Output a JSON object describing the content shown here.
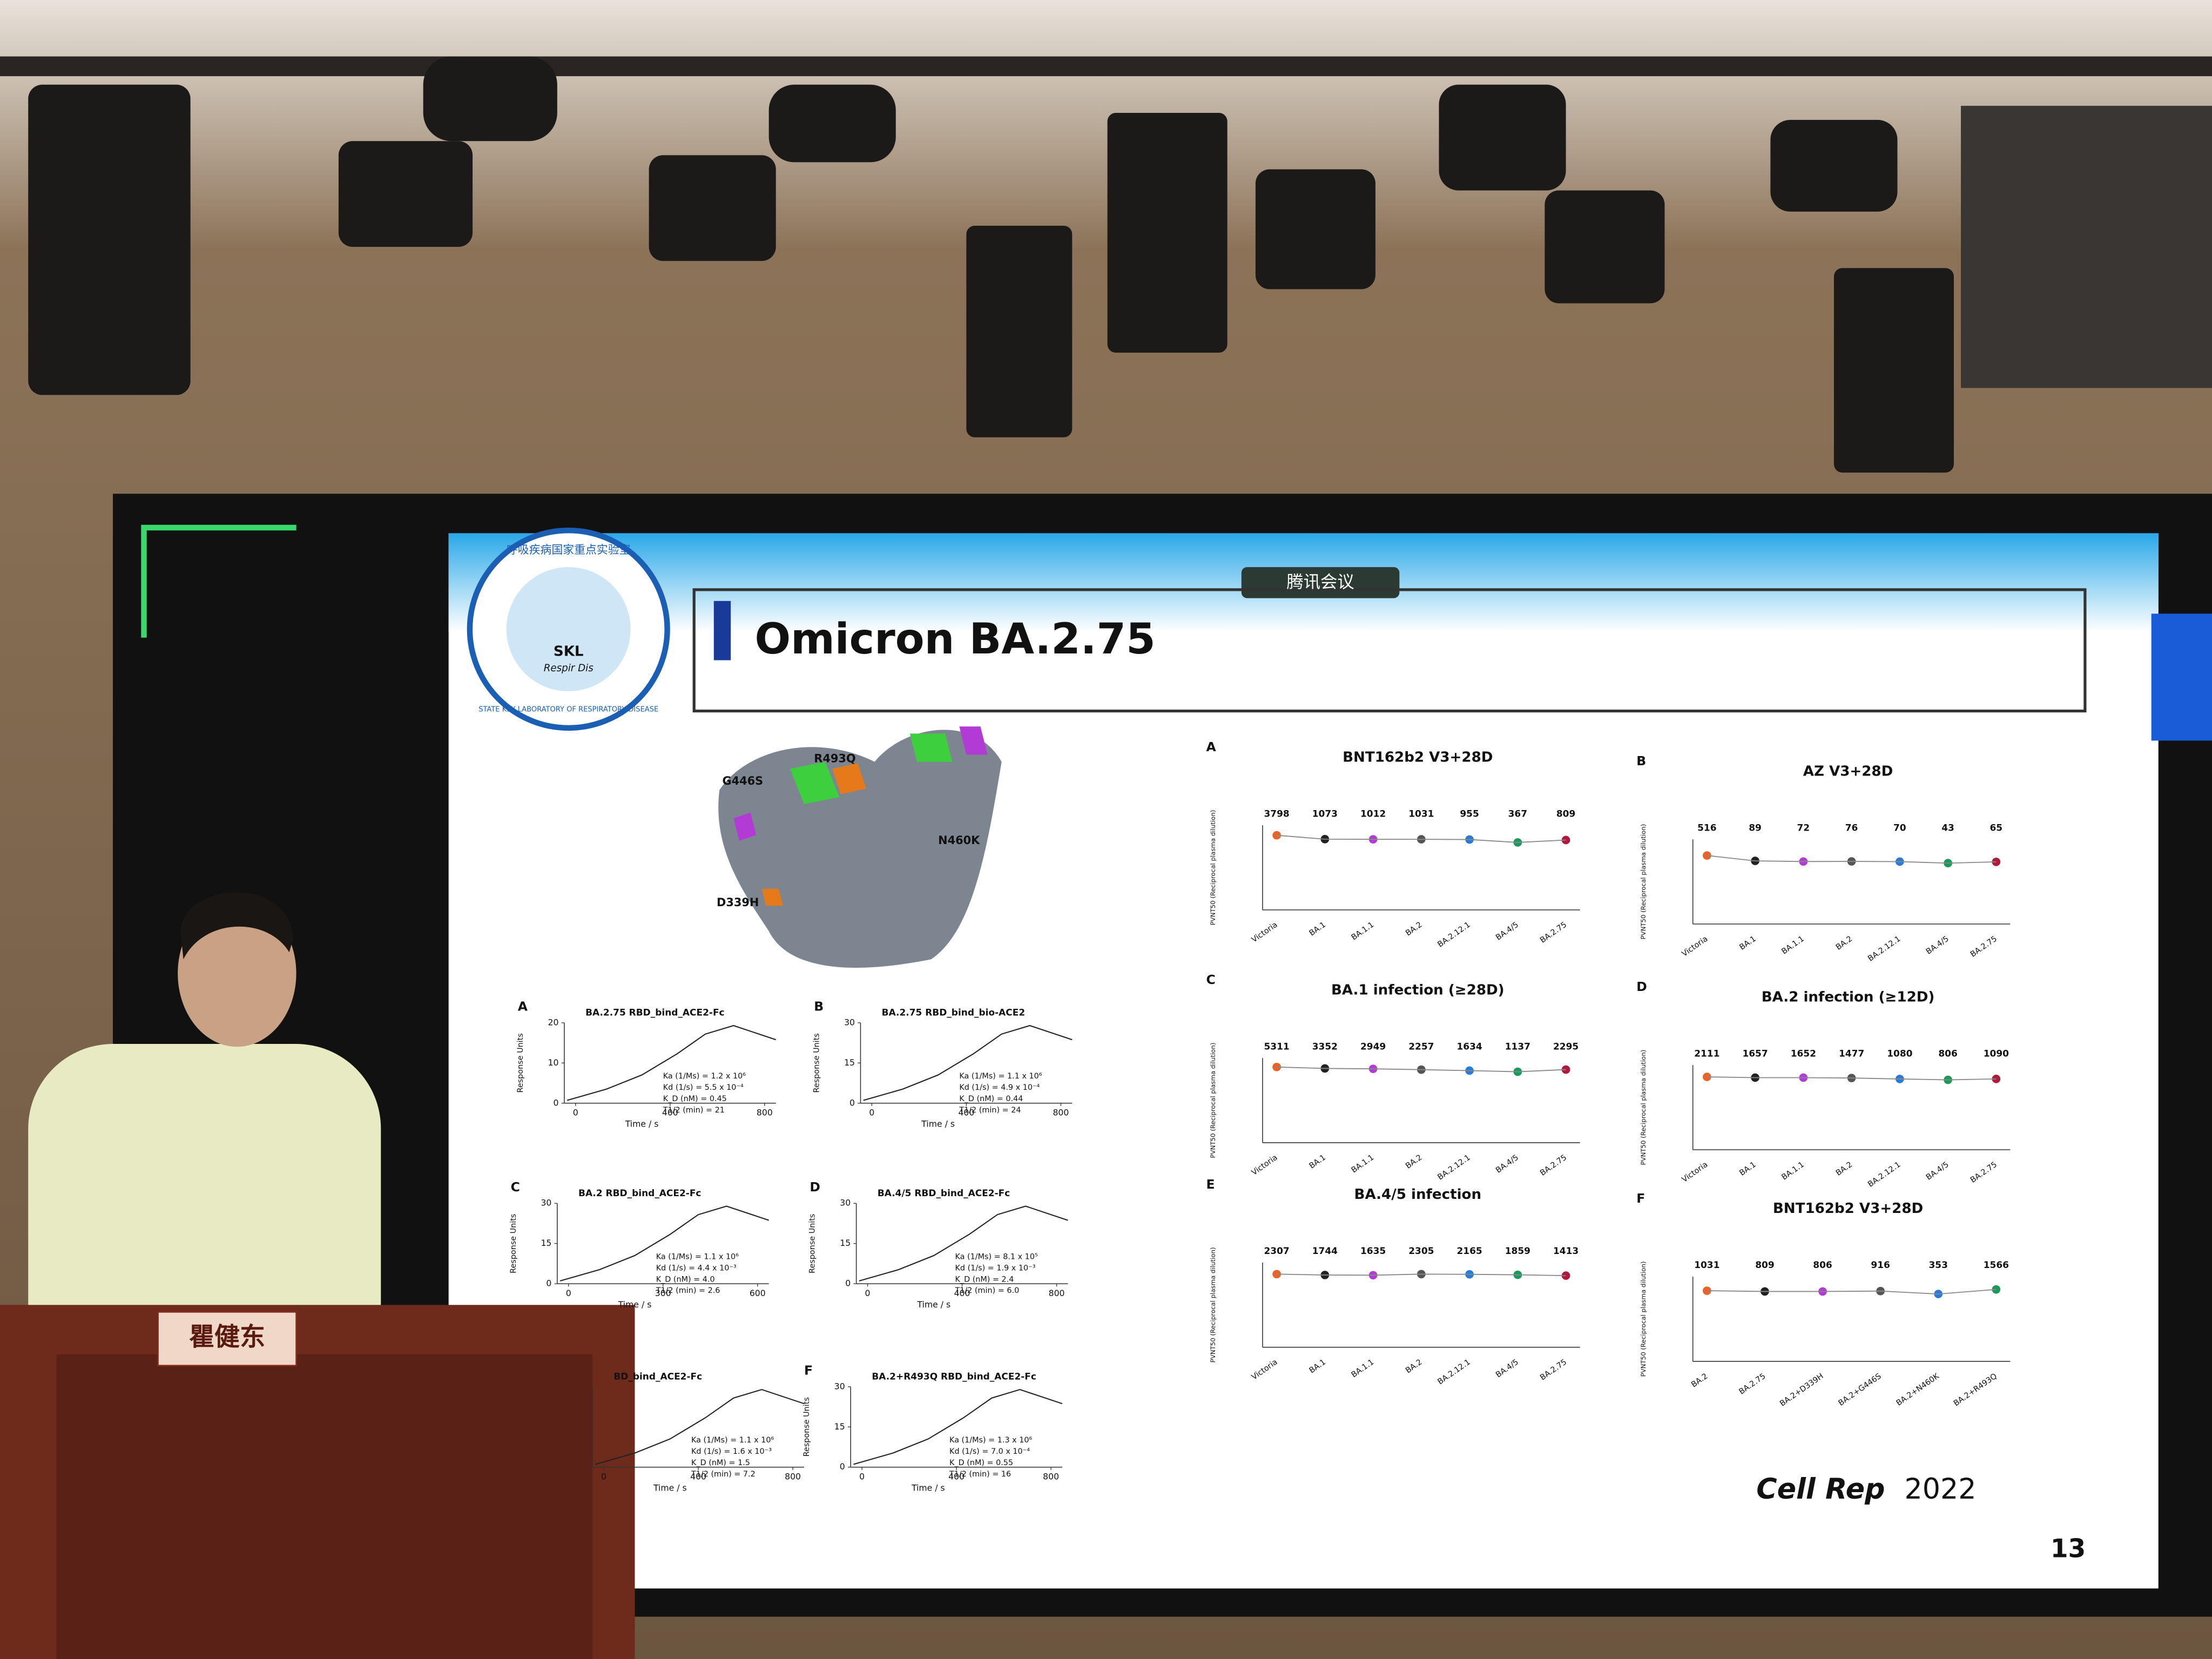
{
  "meeting_badge": "腾讯会议",
  "logo": {
    "name_cn": "呼吸疾病国家重点实验室",
    "abbr": "SKL",
    "sub": "Respir Dis",
    "name_en": "STATE KEY LABORATORY OF RESPIRATORY DISEASE"
  },
  "slide_title": "Omicron BA.2.75",
  "structure_labels": [
    "R493Q",
    "G446S",
    "N460K",
    "D339H"
  ],
  "spr_panels": [
    {
      "letter": "A",
      "title": "BA.2.75 RBD_bind_ACE2-Fc",
      "yticks": [
        0,
        10,
        20
      ],
      "xticks": [
        0,
        400,
        800
      ],
      "params": [
        "Ka (1/Ms) = 1.2 x 10⁶",
        "Kd (1/s) = 5.5 x 10⁻⁴",
        "K_D (nM) = 0.45",
        "T1/2 (min) = 21"
      ]
    },
    {
      "letter": "B",
      "title": "BA.2.75 RBD_bind_bio-ACE2",
      "yticks": [
        0,
        15,
        30
      ],
      "xticks": [
        0,
        400,
        800
      ],
      "params": [
        "Ka (1/Ms) = 1.1 x 10⁶",
        "Kd (1/s) = 4.9 x 10⁻⁴",
        "K_D (nM) = 0.44",
        "T1/2 (min) = 24"
      ]
    },
    {
      "letter": "C",
      "title": "BA.2 RBD_bind_ACE2-Fc",
      "yticks": [
        0,
        15,
        30
      ],
      "xticks": [
        0,
        300,
        600
      ],
      "params": [
        "Ka (1/Ms) = 1.1 x 10⁶",
        "Kd (1/s) = 4.4 x 10⁻³",
        "K_D (nM) = 4.0",
        "T1/2 (min) = 2.6"
      ]
    },
    {
      "letter": "D",
      "title": "BA.4/5 RBD_bind_ACE2-Fc",
      "yticks": [
        0,
        15,
        30
      ],
      "xticks": [
        0,
        400,
        800
      ],
      "params": [
        "Ka (1/Ms) = 8.1 x 10⁵",
        "Kd (1/s) = 1.9 x 10⁻³",
        "K_D (nM) = 2.4",
        "T1/2 (min) = 6.0"
      ]
    },
    {
      "title": "BD_bind_ACE2-Fc",
      "xticks": [
        0,
        400,
        800
      ],
      "params": [
        "Ka (1/Ms) = 1.1 x 10⁶",
        "Kd (1/s) = 1.6 x 10⁻³",
        "K_D (nM) = 1.5",
        "T1/2 (min) = 7.2"
      ]
    },
    {
      "letter": "F",
      "title": "BA.2+R493Q RBD_bind_ACE2-Fc",
      "yticks": [
        0,
        15,
        30
      ],
      "xticks": [
        0,
        400,
        800
      ],
      "params": [
        "Ka (1/Ms) = 1.3 x 10⁶",
        "Kd (1/s) = 7.0 x 10⁻⁴",
        "K_D (nM) = 0.55",
        "T1/2 (min) = 16"
      ]
    }
  ],
  "spr_axis": {
    "y_label": "Response Units",
    "x_label": "Time / s"
  },
  "neut_y_label": "PVNT50 (Reciprocal plasma dilution)",
  "neut_panels": [
    {
      "letter": "A",
      "title": "BNT162b2 V3+28D",
      "values": [
        3798,
        1073,
        1012,
        1031,
        955,
        367,
        809
      ],
      "categories": [
        "Victoria",
        "BA.1",
        "BA.1.1",
        "BA.2",
        "BA.2.12.1",
        "BA.4/5",
        "BA.2.75"
      ]
    },
    {
      "letter": "B",
      "title": "AZ V3+28D",
      "values": [
        516,
        89,
        72,
        76,
        70,
        43,
        65
      ],
      "categories": [
        "Victoria",
        "BA.1",
        "BA.1.1",
        "BA.2",
        "BA.2.12.1",
        "BA.4/5",
        "BA.2.75"
      ]
    },
    {
      "letter": "C",
      "title": "BA.1 infection (≥28D)",
      "values": [
        5311,
        3352,
        2949,
        2257,
        1634,
        1137,
        2295
      ],
      "categories": [
        "Victoria",
        "BA.1",
        "BA.1.1",
        "BA.2",
        "BA.2.12.1",
        "BA.4/5",
        "BA.2.75"
      ]
    },
    {
      "letter": "D",
      "title": "BA.2 infection (≥12D)",
      "values": [
        2111,
        1657,
        1652,
        1477,
        1080,
        806,
        1090
      ],
      "categories": [
        "Victoria",
        "BA.1",
        "BA.1.1",
        "BA.2",
        "BA.2.12.1",
        "BA.4/5",
        "BA.2.75"
      ]
    },
    {
      "letter": "E",
      "title": "BA.4/5 infection",
      "values": [
        2307,
        1744,
        1635,
        2305,
        2165,
        1859,
        1413
      ],
      "categories": [
        "Victoria",
        "BA.1",
        "BA.1.1",
        "BA.2",
        "BA.2.12.1",
        "BA.4/5",
        "BA.2.75"
      ]
    },
    {
      "letter": "F",
      "title": "BNT162b2 V3+28D",
      "values": [
        1031,
        809,
        806,
        916,
        353,
        1566
      ],
      "categories": [
        "BA.2",
        "BA.2.75",
        "BA.2+D339H",
        "BA.2+G446S",
        "BA.2+N460K",
        "BA.2+R493Q"
      ]
    }
  ],
  "citation": {
    "journal": "Cell Rep",
    "year": "2022"
  },
  "page_number": "13",
  "nameplate": "瞿健东"
}
